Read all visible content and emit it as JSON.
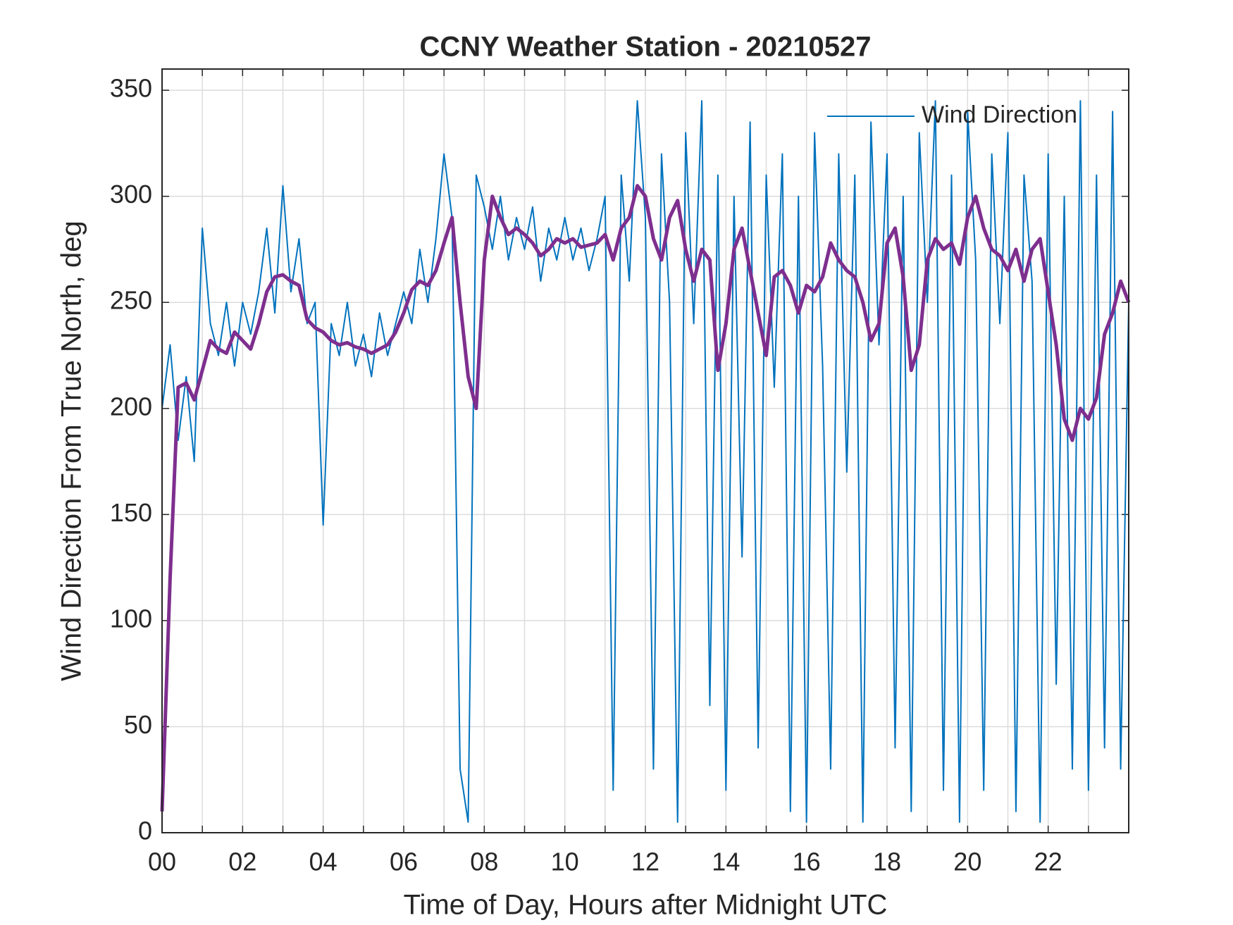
{
  "chart_data": {
    "type": "line",
    "title": "CCNY Weather Station - 20210527",
    "xlabel": "Time of Day, Hours after Midnight UTC",
    "ylabel": "Wind Direction From True North, deg",
    "x": [
      0,
      0.2,
      0.4,
      0.6,
      0.8,
      1,
      1.2,
      1.4,
      1.6,
      1.8,
      2,
      2.2,
      2.4,
      2.6,
      2.8,
      3,
      3.2,
      3.4,
      3.6,
      3.8,
      4,
      4.2,
      4.4,
      4.6,
      4.8,
      5,
      5.2,
      5.4,
      5.6,
      5.8,
      6,
      6.2,
      6.4,
      6.6,
      6.8,
      7,
      7.2,
      7.4,
      7.6,
      7.8,
      8,
      8.2,
      8.4,
      8.6,
      8.8,
      9,
      9.2,
      9.4,
      9.6,
      9.8,
      10,
      10.2,
      10.4,
      10.6,
      10.8,
      11,
      11.2,
      11.4,
      11.6,
      11.8,
      12,
      12.2,
      12.4,
      12.6,
      12.8,
      13,
      13.2,
      13.4,
      13.6,
      13.8,
      14,
      14.2,
      14.4,
      14.6,
      14.8,
      15,
      15.2,
      15.4,
      15.6,
      15.8,
      16,
      16.2,
      16.4,
      16.6,
      16.8,
      17,
      17.2,
      17.4,
      17.6,
      17.8,
      18,
      18.2,
      18.4,
      18.6,
      18.8,
      19,
      19.2,
      19.4,
      19.6,
      19.8,
      20,
      20.2,
      20.4,
      20.6,
      20.8,
      21,
      21.2,
      21.4,
      21.6,
      21.8,
      22,
      22.2,
      22.4,
      22.6,
      22.8,
      23,
      23.2,
      23.4,
      23.6,
      23.8,
      24
    ],
    "series": [
      {
        "name": "Wind Direction",
        "color": "#0072BD",
        "width": 2,
        "values": [
          200,
          230,
          185,
          215,
          175,
          285,
          240,
          225,
          250,
          220,
          250,
          235,
          255,
          285,
          245,
          305,
          255,
          280,
          240,
          250,
          145,
          240,
          225,
          250,
          220,
          235,
          215,
          245,
          225,
          240,
          255,
          240,
          275,
          250,
          280,
          320,
          290,
          30,
          5,
          310,
          295,
          275,
          300,
          270,
          290,
          275,
          295,
          260,
          285,
          270,
          290,
          270,
          285,
          265,
          280,
          300,
          20,
          310,
          260,
          345,
          290,
          30,
          320,
          250,
          5,
          330,
          240,
          345,
          60,
          310,
          20,
          300,
          130,
          335,
          40,
          310,
          210,
          320,
          10,
          300,
          5,
          330,
          220,
          30,
          320,
          170,
          310,
          5,
          335,
          230,
          320,
          40,
          300,
          10,
          330,
          250,
          345,
          20,
          310,
          5,
          340,
          270,
          20,
          320,
          240,
          330,
          10,
          310,
          260,
          5,
          320,
          70,
          300,
          30,
          345,
          20,
          310,
          40,
          340,
          30,
          250
        ]
      },
      {
        "color": "#7E2F8E",
        "width": 5,
        "values": [
          10,
          120,
          210,
          212,
          204,
          218,
          232,
          228,
          226,
          236,
          232,
          228,
          240,
          255,
          262,
          263,
          260,
          258,
          242,
          238,
          236,
          232,
          230,
          231,
          229,
          228,
          226,
          228,
          230,
          236,
          245,
          256,
          260,
          258,
          265,
          278,
          290,
          250,
          215,
          200,
          270,
          300,
          290,
          282,
          285,
          282,
          278,
          272,
          275,
          280,
          278,
          280,
          276,
          277,
          278,
          282,
          270,
          285,
          290,
          305,
          300,
          280,
          270,
          290,
          298,
          275,
          260,
          275,
          270,
          218,
          240,
          275,
          285,
          265,
          245,
          225,
          262,
          265,
          258,
          245,
          258,
          255,
          262,
          278,
          270,
          265,
          262,
          250,
          232,
          240,
          278,
          285,
          262,
          218,
          230,
          270,
          280,
          275,
          278,
          268,
          290,
          300,
          285,
          275,
          272,
          265,
          275,
          260,
          275,
          280,
          255,
          230,
          195,
          185,
          200,
          195,
          205,
          235,
          245,
          260,
          250
        ]
      }
    ],
    "xlim": [
      0,
      24
    ],
    "xticks": [
      {
        "value": 0,
        "label": "00"
      },
      {
        "value": 2,
        "label": "02"
      },
      {
        "value": 4,
        "label": "04"
      },
      {
        "value": 6,
        "label": "06"
      },
      {
        "value": 8,
        "label": "08"
      },
      {
        "value": 10,
        "label": "10"
      },
      {
        "value": 12,
        "label": "12"
      },
      {
        "value": 14,
        "label": "14"
      },
      {
        "value": 16,
        "label": "16"
      },
      {
        "value": 18,
        "label": "18"
      },
      {
        "value": 20,
        "label": "20"
      },
      {
        "value": 22,
        "label": "22"
      }
    ],
    "x_minor_ticks": [
      1,
      3,
      5,
      7,
      9,
      11,
      13,
      15,
      17,
      19,
      21,
      23
    ],
    "ylim": [
      0,
      360
    ],
    "yticks": [
      0,
      50,
      100,
      150,
      200,
      250,
      300,
      350
    ],
    "grid": true,
    "legend": "upper right"
  }
}
